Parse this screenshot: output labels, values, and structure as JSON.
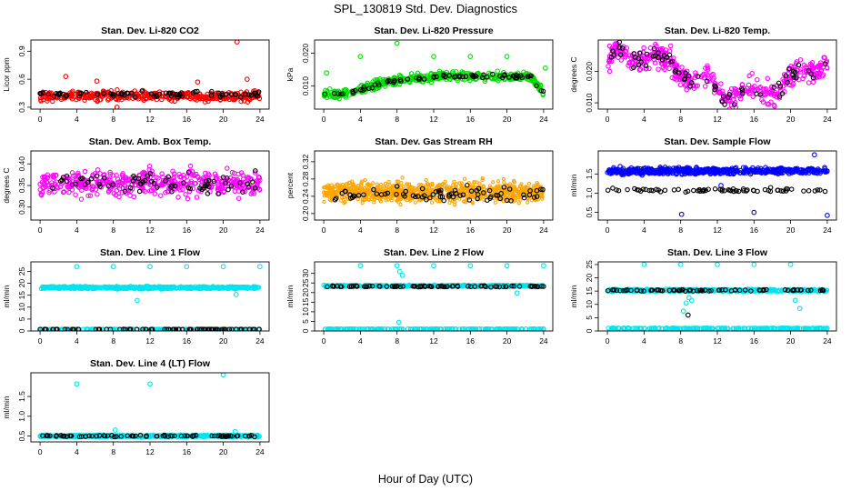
{
  "figure": {
    "title": "SPL_130819  Std. Dev. Diagnostics",
    "xlabel": "Hour of Day (UTC)"
  },
  "colors": {
    "red": "#ff0000",
    "green": "#00dd00",
    "magenta": "#ff00ff",
    "orange": "#ffa500",
    "blue": "#0000ff",
    "cyan": "#00e5ee",
    "black": "#000000"
  },
  "chart_data": [
    {
      "type": "scatter",
      "title": "Stan. Dev. Li-820 CO2",
      "ylabel": "Licor ppm",
      "xlim": [
        -1,
        25
      ],
      "ylim": [
        0.28,
        1.02
      ],
      "xticks": [
        0,
        4,
        8,
        12,
        16,
        20,
        24
      ],
      "xtick_labels": [
        "0",
        "4",
        "8",
        "12",
        "16",
        "20",
        "24"
      ],
      "yticks": [
        0.3,
        0.6,
        0.9
      ],
      "ytick_labels": [
        "0.3",
        "0.6",
        "0.9"
      ],
      "series": [
        {
          "color": "red",
          "base": 0.42,
          "spread": 0.05,
          "n": 380,
          "outliers": [
            [
              2.8,
              0.63
            ],
            [
              21.5,
              1.0
            ],
            [
              22.6,
              0.6
            ],
            [
              6.2,
              0.58
            ],
            [
              17.2,
              0.57
            ],
            [
              8.4,
              0.3
            ]
          ]
        },
        {
          "color": "black",
          "base": 0.44,
          "spread": 0.03,
          "n": 75,
          "outliers": []
        }
      ]
    },
    {
      "type": "scatter",
      "title": "Stan. Dev. Li-820 Pressure",
      "ylabel": "kPa",
      "xlim": [
        -1,
        25
      ],
      "ylim": [
        0.003,
        0.024
      ],
      "xticks": [
        0,
        4,
        8,
        12,
        16,
        20,
        24
      ],
      "xtick_labels": [
        "0",
        "4",
        "8",
        "12",
        "16",
        "20",
        "24"
      ],
      "yticks": [
        0.01,
        0.02
      ],
      "ytick_labels": [
        "0.010",
        "0.020"
      ],
      "series": [
        {
          "color": "green",
          "profile": "pressure",
          "spread": 0.0013,
          "n": 420,
          "outliers": [
            [
              0.3,
              0.014
            ],
            [
              4.0,
              0.019
            ],
            [
              8.0,
              0.023
            ],
            [
              12.0,
              0.019
            ],
            [
              16.0,
              0.019
            ],
            [
              20.0,
              0.019
            ],
            [
              24.2,
              0.0155
            ]
          ]
        },
        {
          "color": "black",
          "profile": "pressure",
          "spread": 0.0007,
          "n": 75,
          "outliers": []
        }
      ]
    },
    {
      "type": "scatter",
      "title": "Stan. Dev. Li-820 Temp.",
      "ylabel": "degrees C",
      "xlim": [
        -1,
        25
      ],
      "ylim": [
        0.008,
        0.03
      ],
      "xticks": [
        0,
        4,
        8,
        12,
        16,
        20,
        24
      ],
      "xtick_labels": [
        "0",
        "4",
        "8",
        "12",
        "16",
        "20",
        "24"
      ],
      "yticks": [
        0.01,
        0.02
      ],
      "ytick_labels": [
        "0.010",
        "0.020"
      ],
      "series": [
        {
          "color": "magenta",
          "profile": "temp",
          "spread": 0.0035,
          "n": 420,
          "outliers": []
        },
        {
          "color": "black",
          "profile": "temp",
          "spread": 0.003,
          "n": 70,
          "outliers": []
        }
      ]
    },
    {
      "type": "scatter",
      "title": "Stan. Dev. Amb. Box Temp.",
      "ylabel": "degrees C",
      "xlim": [
        -1,
        25
      ],
      "ylim": [
        0.27,
        0.43
      ],
      "xticks": [
        0,
        4,
        8,
        12,
        16,
        20,
        24
      ],
      "xtick_labels": [
        "0",
        "4",
        "8",
        "12",
        "16",
        "20",
        "24"
      ],
      "yticks": [
        0.3,
        0.35,
        0.4
      ],
      "ytick_labels": [
        "0.30",
        "0.35",
        "0.40"
      ],
      "series": [
        {
          "color": "magenta",
          "base": 0.355,
          "spread": 0.028,
          "n": 460,
          "outliers": []
        },
        {
          "color": "black",
          "base": 0.355,
          "spread": 0.025,
          "n": 70,
          "outliers": []
        }
      ]
    },
    {
      "type": "scatter",
      "title": "Stan. Dev. Gas Stream RH",
      "ylabel": "percent",
      "xlim": [
        -1,
        25
      ],
      "ylim": [
        0.185,
        0.345
      ],
      "xticks": [
        0,
        4,
        8,
        12,
        16,
        20,
        24
      ],
      "xtick_labels": [
        "0",
        "4",
        "8",
        "12",
        "16",
        "20",
        "24"
      ],
      "yticks": [
        0.2,
        0.24,
        0.28,
        0.32
      ],
      "ytick_labels": [
        "0.20",
        "0.24",
        "0.28",
        "0.32"
      ],
      "series": [
        {
          "color": "orange",
          "base": 0.25,
          "spread": 0.022,
          "n": 900,
          "outliers": []
        },
        {
          "color": "black",
          "base": 0.245,
          "spread": 0.018,
          "n": 75,
          "outliers": []
        }
      ]
    },
    {
      "type": "scatter",
      "title": "Stan. Dev. Sample Flow",
      "ylabel": "ml/min",
      "xlim": [
        -1,
        25
      ],
      "ylim": [
        0.3,
        2.1
      ],
      "xticks": [
        0,
        4,
        8,
        12,
        16,
        20,
        24
      ],
      "xtick_labels": [
        "0",
        "4",
        "8",
        "12",
        "16",
        "20",
        "24"
      ],
      "yticks": [
        0.5,
        1.0,
        1.5
      ],
      "ytick_labels": [
        "0.5",
        "1.0",
        "1.5"
      ],
      "series": [
        {
          "color": "blue",
          "base": 1.58,
          "spread": 0.08,
          "n": 600,
          "outliers": [
            [
              8.1,
              0.45
            ],
            [
              16.0,
              0.5
            ],
            [
              24.0,
              0.42
            ],
            [
              22.6,
              2.0
            ],
            [
              12.4,
              1.2
            ]
          ]
        },
        {
          "color": "black",
          "base": 1.07,
          "spread": 0.05,
          "n": 70,
          "outliers": []
        }
      ]
    },
    {
      "type": "scatter",
      "title": "Stan. Dev. Line 1 Flow",
      "ylabel": "ml/min",
      "xlim": [
        -1,
        25
      ],
      "ylim": [
        0,
        29
      ],
      "xticks": [
        0,
        4,
        8,
        12,
        16,
        20,
        24
      ],
      "xtick_labels": [
        "0",
        "4",
        "8",
        "12",
        "16",
        "20",
        "24"
      ],
      "yticks": [
        0,
        5,
        10,
        15,
        20,
        25
      ],
      "ytick_labels": [
        "0",
        "5",
        "10",
        "15",
        "20",
        "25"
      ],
      "series": [
        {
          "color": "cyan",
          "base": 18.2,
          "spread": 0.5,
          "n": 520,
          "outliers": [
            [
              4.0,
              27
            ],
            [
              8.0,
              27
            ],
            [
              12.0,
              27
            ],
            [
              16.0,
              27
            ],
            [
              20.0,
              27
            ],
            [
              24.0,
              27
            ],
            [
              10.6,
              12.8
            ],
            [
              21.4,
              15.3
            ]
          ]
        },
        {
          "color": "cyan",
          "base": 0.7,
          "spread": 0.08,
          "n": 200,
          "outliers": []
        },
        {
          "color": "black",
          "base": 0.7,
          "spread": 0.05,
          "n": 80,
          "outliers": []
        }
      ]
    },
    {
      "type": "scatter",
      "title": "Stan. Dev. Line 2 Flow",
      "ylabel": "ml/min",
      "xlim": [
        -1,
        25
      ],
      "ylim": [
        0,
        36
      ],
      "xticks": [
        0,
        4,
        8,
        12,
        16,
        20,
        24
      ],
      "xtick_labels": [
        "0",
        "4",
        "8",
        "12",
        "16",
        "20",
        "24"
      ],
      "yticks": [
        0,
        5,
        10,
        15,
        20,
        25,
        30
      ],
      "ytick_labels": [
        "0",
        "5",
        "10",
        "15",
        "20",
        "25",
        "30"
      ],
      "series": [
        {
          "color": "cyan",
          "base": 23.5,
          "spread": 0.4,
          "n": 420,
          "outliers": [
            [
              4.0,
              34
            ],
            [
              8.0,
              34
            ],
            [
              8.3,
              31
            ],
            [
              8.6,
              29
            ],
            [
              12.0,
              34
            ],
            [
              16.0,
              34
            ],
            [
              20.0,
              34
            ],
            [
              24.0,
              34
            ],
            [
              21.1,
              19.8
            ],
            [
              8.2,
              4.5
            ]
          ]
        },
        {
          "color": "cyan",
          "base": 1.0,
          "spread": 0.1,
          "n": 200,
          "outliers": []
        },
        {
          "color": "black",
          "base": 23.2,
          "spread": 0.3,
          "n": 80,
          "outliers": []
        }
      ]
    },
    {
      "type": "scatter",
      "title": "Stan. Dev. Line 3 Flow",
      "ylabel": "ml/min",
      "xlim": [
        -1,
        25
      ],
      "ylim": [
        0,
        26
      ],
      "xticks": [
        0,
        4,
        8,
        12,
        16,
        20,
        24
      ],
      "xtick_labels": [
        "0",
        "4",
        "8",
        "12",
        "16",
        "20",
        "24"
      ],
      "yticks": [
        0,
        5,
        10,
        15,
        20,
        25
      ],
      "ytick_labels": [
        "0",
        "5",
        "10",
        "15",
        "20",
        "25"
      ],
      "series": [
        {
          "color": "cyan",
          "base": 15.3,
          "spread": 0.4,
          "n": 420,
          "outliers": [
            [
              4.0,
              25
            ],
            [
              8.0,
              25
            ],
            [
              12.0,
              25
            ],
            [
              16.0,
              25
            ],
            [
              20.0,
              25
            ],
            [
              8.3,
              7.5
            ],
            [
              8.6,
              10.5
            ],
            [
              8.9,
              12.5
            ],
            [
              21.0,
              8.5
            ],
            [
              20.5,
              11.5
            ],
            [
              9.2,
              11.5
            ]
          ]
        },
        {
          "color": "cyan",
          "base": 1.0,
          "spread": 0.1,
          "n": 200,
          "outliers": []
        },
        {
          "color": "black",
          "base": 15.3,
          "spread": 0.3,
          "n": 80,
          "outliers": [
            [
              8.8,
              6.0
            ]
          ]
        }
      ]
    },
    {
      "type": "scatter",
      "title": "Stan. Dev. Line 4 (LT) Flow",
      "ylabel": "ml/min",
      "xlim": [
        -1,
        25
      ],
      "ylim": [
        0.35,
        2.1
      ],
      "xticks": [
        0,
        4,
        8,
        12,
        16,
        20,
        24
      ],
      "xtick_labels": [
        "0",
        "4",
        "8",
        "12",
        "16",
        "20",
        "24"
      ],
      "yticks": [
        0.5,
        1.0,
        1.5
      ],
      "ytick_labels": [
        "0.5",
        "1.0",
        "1.5"
      ],
      "series": [
        {
          "color": "cyan",
          "base": 0.5,
          "spread": 0.025,
          "n": 500,
          "outliers": [
            [
              4.0,
              1.82
            ],
            [
              12.0,
              1.82
            ],
            [
              20.0,
              2.05
            ],
            [
              8.2,
              0.65
            ],
            [
              21.3,
              0.61
            ]
          ]
        },
        {
          "color": "black",
          "base": 0.5,
          "spread": 0.02,
          "n": 80,
          "outliers": []
        }
      ]
    }
  ]
}
